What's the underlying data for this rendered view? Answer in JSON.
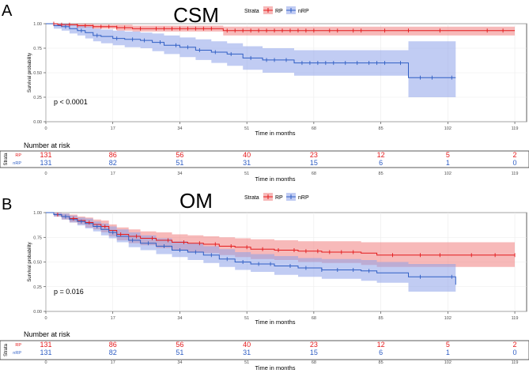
{
  "colors": {
    "rp": "#e41a1c",
    "nrp": "#2f5ec4",
    "rp_band": "#f08080",
    "nrp_band": "#8ea3ea",
    "grid": "#ebebeb"
  },
  "x_ticks": [
    0,
    17,
    34,
    51,
    68,
    85,
    102,
    119
  ],
  "y_ticks": [
    0.0,
    0.25,
    0.5,
    0.75,
    1.0
  ],
  "y_tick_labels": [
    "0.00",
    "0.25",
    "0.50",
    "0.75",
    "1.00"
  ],
  "chart_data": [
    {
      "type": "line",
      "panel_letter": "A",
      "title": "CSM",
      "legend_title": "Strata",
      "legend_labels": [
        "RP",
        "nRP"
      ],
      "xlabel": "Time in months",
      "ylabel": "Survival probability",
      "xlim": [
        0,
        122
      ],
      "ylim": [
        0,
        1
      ],
      "pvalue": "p < 0.0001",
      "series": [
        {
          "name": "RP",
          "x": [
            0,
            3,
            8,
            12,
            18,
            22,
            45,
            119
          ],
          "y": [
            1.0,
            0.99,
            0.98,
            0.97,
            0.96,
            0.95,
            0.93,
            0.93
          ],
          "lower": [
            1.0,
            0.98,
            0.96,
            0.95,
            0.93,
            0.92,
            0.88,
            0.88
          ],
          "upper": [
            1.0,
            1.0,
            1.0,
            0.99,
            0.99,
            0.98,
            0.97,
            0.97
          ]
        },
        {
          "name": "nRP",
          "x": [
            0,
            2,
            4,
            6,
            8,
            10,
            12,
            14,
            17,
            20,
            24,
            27,
            30,
            34,
            38,
            42,
            46,
            50,
            55,
            63,
            92,
            104
          ],
          "y": [
            1.0,
            0.98,
            0.97,
            0.95,
            0.93,
            0.91,
            0.88,
            0.87,
            0.85,
            0.84,
            0.83,
            0.81,
            0.78,
            0.76,
            0.73,
            0.71,
            0.69,
            0.65,
            0.63,
            0.6,
            0.45,
            0.45
          ],
          "lower": [
            1.0,
            0.95,
            0.93,
            0.9,
            0.88,
            0.85,
            0.82,
            0.8,
            0.78,
            0.76,
            0.75,
            0.72,
            0.69,
            0.66,
            0.63,
            0.6,
            0.57,
            0.53,
            0.5,
            0.47,
            0.25,
            0.25
          ],
          "upper": [
            1.0,
            1.0,
            1.0,
            0.99,
            0.98,
            0.97,
            0.95,
            0.94,
            0.93,
            0.92,
            0.91,
            0.9,
            0.88,
            0.86,
            0.84,
            0.82,
            0.8,
            0.77,
            0.75,
            0.73,
            0.82,
            0.82
          ]
        }
      ],
      "censor_marks": [
        {
          "series": "RP",
          "x": [
            2,
            4,
            6,
            8,
            10,
            12,
            14,
            16,
            18,
            20,
            24,
            28,
            30,
            32,
            34,
            36,
            38,
            40,
            42,
            46,
            48,
            50,
            52,
            54,
            56,
            58,
            60,
            62,
            64,
            66,
            68,
            72,
            74,
            78,
            80,
            86,
            92,
            100,
            112,
            116
          ]
        },
        {
          "series": "nRP",
          "x": [
            5,
            9,
            13,
            18,
            22,
            25,
            29,
            33,
            36,
            39,
            43,
            47,
            52,
            56,
            58,
            61,
            65,
            67,
            69,
            71,
            73,
            76,
            79,
            82,
            84,
            86,
            90,
            95,
            98,
            103
          ]
        }
      ],
      "risk_table": {
        "title": "Number at risk",
        "strata_label": "Strata",
        "rows": [
          {
            "name": "RP",
            "values": [
              "131",
              "86",
              "56",
              "40",
              "23",
              "12",
              "5",
              "2"
            ]
          },
          {
            "name": "nRP",
            "values": [
              "131",
              "82",
              "51",
              "31",
              "15",
              "6",
              "1",
              "0"
            ]
          }
        ]
      }
    },
    {
      "type": "line",
      "panel_letter": "B",
      "title": "OM",
      "legend_title": "Strata",
      "legend_labels": [
        "RP",
        "nRP"
      ],
      "xlabel": "Time in months",
      "ylabel": "Survival probability",
      "xlim": [
        0,
        122
      ],
      "ylim": [
        0,
        1
      ],
      "pvalue": "p = 0.016",
      "series": [
        {
          "name": "RP",
          "x": [
            0,
            2,
            4,
            6,
            8,
            10,
            12,
            14,
            16,
            18,
            21,
            24,
            28,
            32,
            36,
            40,
            44,
            48,
            52,
            58,
            64,
            70,
            80,
            84,
            119
          ],
          "y": [
            1.0,
            0.98,
            0.96,
            0.94,
            0.92,
            0.9,
            0.88,
            0.86,
            0.82,
            0.78,
            0.76,
            0.74,
            0.72,
            0.7,
            0.69,
            0.68,
            0.66,
            0.65,
            0.63,
            0.62,
            0.61,
            0.6,
            0.59,
            0.57,
            0.57
          ],
          "lower": [
            1.0,
            0.96,
            0.93,
            0.9,
            0.88,
            0.85,
            0.83,
            0.8,
            0.76,
            0.72,
            0.69,
            0.67,
            0.64,
            0.62,
            0.6,
            0.59,
            0.57,
            0.55,
            0.53,
            0.52,
            0.5,
            0.49,
            0.47,
            0.45,
            0.45
          ],
          "upper": [
            1.0,
            1.0,
            0.99,
            0.98,
            0.96,
            0.95,
            0.93,
            0.92,
            0.88,
            0.85,
            0.83,
            0.81,
            0.8,
            0.78,
            0.77,
            0.76,
            0.75,
            0.74,
            0.73,
            0.72,
            0.71,
            0.71,
            0.7,
            0.7,
            0.7
          ]
        },
        {
          "name": "nRP",
          "x": [
            0,
            2,
            4,
            6,
            8,
            10,
            12,
            14,
            16,
            18,
            21,
            24,
            28,
            32,
            36,
            40,
            44,
            48,
            52,
            58,
            64,
            70,
            80,
            84,
            92,
            104
          ],
          "y": [
            1.0,
            0.98,
            0.96,
            0.93,
            0.91,
            0.89,
            0.86,
            0.83,
            0.8,
            0.76,
            0.72,
            0.69,
            0.66,
            0.62,
            0.6,
            0.57,
            0.53,
            0.5,
            0.48,
            0.46,
            0.44,
            0.42,
            0.41,
            0.39,
            0.35,
            0.27
          ],
          "lower": [
            1.0,
            0.96,
            0.93,
            0.9,
            0.87,
            0.84,
            0.81,
            0.77,
            0.74,
            0.7,
            0.65,
            0.62,
            0.58,
            0.55,
            0.52,
            0.49,
            0.45,
            0.42,
            0.4,
            0.37,
            0.35,
            0.33,
            0.31,
            0.29,
            0.2,
            0.13
          ],
          "upper": [
            1.0,
            1.0,
            0.99,
            0.97,
            0.95,
            0.94,
            0.91,
            0.89,
            0.86,
            0.83,
            0.8,
            0.77,
            0.74,
            0.71,
            0.69,
            0.66,
            0.63,
            0.6,
            0.58,
            0.56,
            0.54,
            0.53,
            0.52,
            0.5,
            0.48,
            0.48
          ]
        }
      ],
      "censor_marks": [
        {
          "series": "RP",
          "x": [
            3,
            7,
            11,
            15,
            19,
            23,
            27,
            31,
            35,
            39,
            43,
            47,
            51,
            55,
            59,
            63,
            66,
            69,
            72,
            75,
            78,
            88,
            95,
            100,
            108,
            114,
            119
          ]
        },
        {
          "series": "nRP",
          "x": [
            5,
            9,
            13,
            17,
            22,
            26,
            30,
            34,
            38,
            42,
            46,
            50,
            54,
            57,
            62,
            66,
            70,
            74,
            78,
            82,
            95,
            103
          ]
        }
      ],
      "risk_table": {
        "title": "Number at risk",
        "strata_label": "Strata",
        "rows": [
          {
            "name": "RP",
            "values": [
              "131",
              "86",
              "56",
              "40",
              "23",
              "12",
              "5",
              "2"
            ]
          },
          {
            "name": "nRP",
            "values": [
              "131",
              "82",
              "51",
              "31",
              "15",
              "6",
              "1",
              "0"
            ]
          }
        ]
      }
    }
  ]
}
